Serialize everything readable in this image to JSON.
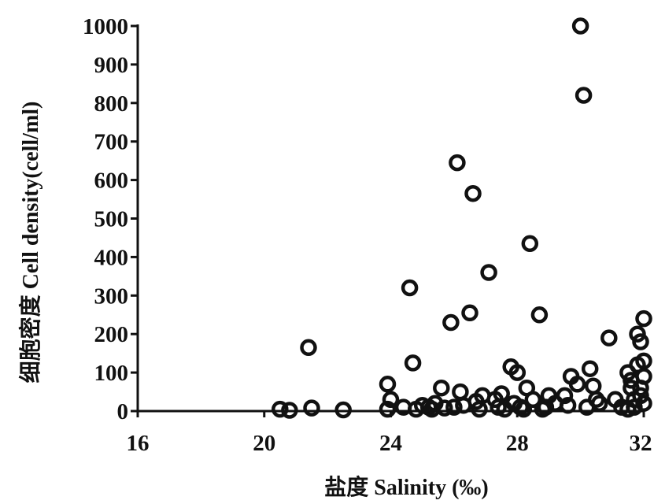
{
  "chart_data": {
    "type": "scatter",
    "title": "",
    "xlabel": "盐度 Salinity (‰)",
    "ylabel": "细胞密度 Cell density(cell/ml)",
    "xlim": [
      16,
      32
    ],
    "ylim": [
      0,
      1000
    ],
    "x_ticks": [
      16,
      20,
      24,
      28,
      32
    ],
    "y_ticks": [
      0,
      100,
      200,
      300,
      400,
      500,
      600,
      700,
      800,
      900,
      1000
    ],
    "grid": false,
    "legend": "none",
    "series": [
      {
        "x": [
          20.5,
          20.8,
          21.4,
          21.5,
          22.5,
          23.9,
          24.0,
          24.6,
          24.7,
          24.8,
          25.2,
          25.4,
          25.6,
          25.7,
          25.9,
          26.1,
          26.2,
          26.3,
          26.5,
          26.6,
          26.7,
          26.9,
          27.1,
          27.3,
          27.5,
          27.6,
          27.8,
          27.9,
          28.0,
          28.1,
          28.3,
          28.4,
          28.5,
          28.7,
          28.8,
          29.0,
          29.2,
          29.5,
          29.7,
          29.9,
          30.0,
          30.1,
          30.2,
          30.3,
          30.4,
          30.6,
          30.9,
          31.1,
          31.3,
          31.5,
          31.6,
          31.7,
          31.8,
          31.9,
          32.0,
          32.0,
          31.8,
          31.6,
          31.9,
          32.0,
          31.7,
          31.5,
          31.9,
          32.0,
          30.5,
          29.6,
          28.9,
          28.2,
          27.4,
          26.8,
          26.0,
          25.3,
          25.0,
          24.4,
          23.9
        ],
        "y": [
          5,
          2,
          165,
          8,
          3,
          70,
          30,
          320,
          125,
          5,
          10,
          20,
          60,
          8,
          230,
          645,
          50,
          15,
          255,
          565,
          25,
          40,
          360,
          30,
          45,
          5,
          115,
          20,
          100,
          10,
          60,
          435,
          30,
          250,
          5,
          40,
          20,
          40,
          90,
          70,
          1000,
          820,
          10,
          110,
          65,
          20,
          190,
          30,
          10,
          100,
          60,
          30,
          200,
          180,
          240,
          130,
          120,
          80,
          40,
          20,
          10,
          5,
          60,
          90,
          30,
          15,
          10,
          5,
          10,
          5,
          10,
          5,
          15,
          10,
          5
        ]
      }
    ]
  }
}
